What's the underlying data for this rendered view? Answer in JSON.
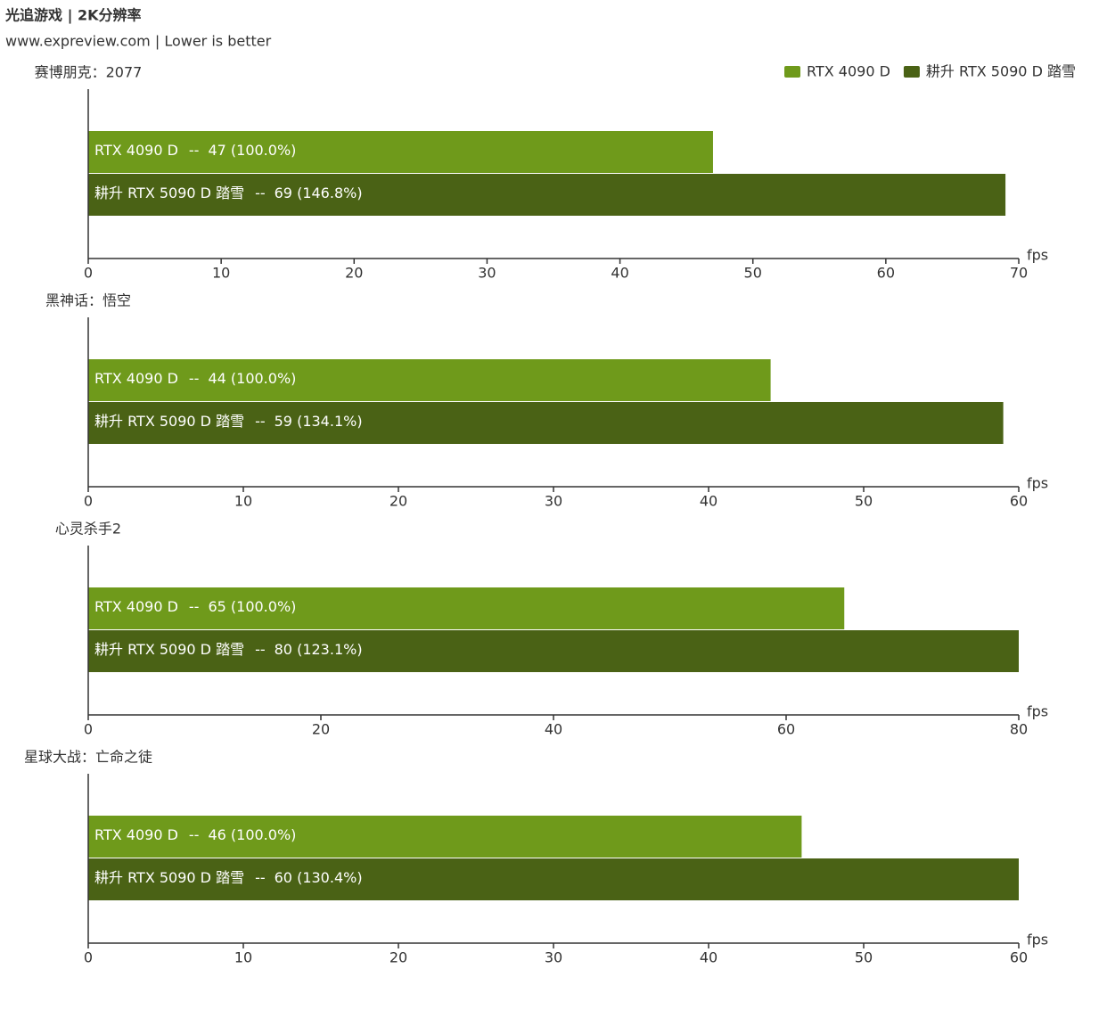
{
  "title": "光追游戏 | 2K分辨率",
  "subtitle": "www.expreview.com | Lower is better",
  "separator": "--",
  "legend": "top-right",
  "chart_data": [
    {
      "type": "barh",
      "title": "赛博朋克：2077",
      "x_label": "fps",
      "series": [
        {
          "name": "RTX 4090 D",
          "color": "#6f9a1b",
          "values": [
            47
          ],
          "value_labels": [
            "47 (100.0%)"
          ]
        },
        {
          "name": "耕升 RTX 5090 D 踏雪",
          "color": "#4a6215",
          "values": [
            69
          ],
          "value_labels": [
            "69 (146.8%)"
          ]
        }
      ],
      "xlim": [
        0,
        70
      ],
      "xticks": [
        0,
        10,
        20,
        30,
        40,
        50,
        60,
        70
      ]
    },
    {
      "type": "barh",
      "title": "黑神话：悟空",
      "x_label": "fps",
      "series": [
        {
          "name": "RTX 4090 D",
          "color": "#6f9a1b",
          "values": [
            44
          ],
          "value_labels": [
            "44 (100.0%)"
          ]
        },
        {
          "name": "耕升 RTX 5090 D 踏雪",
          "color": "#4a6215",
          "values": [
            59
          ],
          "value_labels": [
            "59 (134.1%)"
          ]
        }
      ],
      "xlim": [
        0,
        60
      ],
      "xticks": [
        0,
        10,
        20,
        30,
        40,
        50,
        60
      ]
    },
    {
      "type": "barh",
      "title": "心灵杀手2",
      "x_label": "fps",
      "series": [
        {
          "name": "RTX 4090 D",
          "color": "#6f9a1b",
          "values": [
            65
          ],
          "value_labels": [
            "65 (100.0%)"
          ]
        },
        {
          "name": "耕升 RTX 5090 D 踏雪",
          "color": "#4a6215",
          "values": [
            80
          ],
          "value_labels": [
            "80 (123.1%)"
          ]
        }
      ],
      "xlim": [
        0,
        80
      ],
      "xticks": [
        0,
        20,
        40,
        60,
        80
      ]
    },
    {
      "type": "barh",
      "title": "星球大战：亡命之徒",
      "x_label": "fps",
      "series": [
        {
          "name": "RTX 4090 D",
          "color": "#6f9a1b",
          "values": [
            46
          ],
          "value_labels": [
            "46 (100.0%)"
          ]
        },
        {
          "name": "耕升 RTX 5090 D 踏雪",
          "color": "#4a6215",
          "values": [
            60
          ],
          "value_labels": [
            "60 (130.4%)"
          ]
        }
      ],
      "xlim": [
        0,
        60
      ],
      "xticks": [
        0,
        10,
        20,
        30,
        40,
        50,
        60
      ]
    }
  ]
}
